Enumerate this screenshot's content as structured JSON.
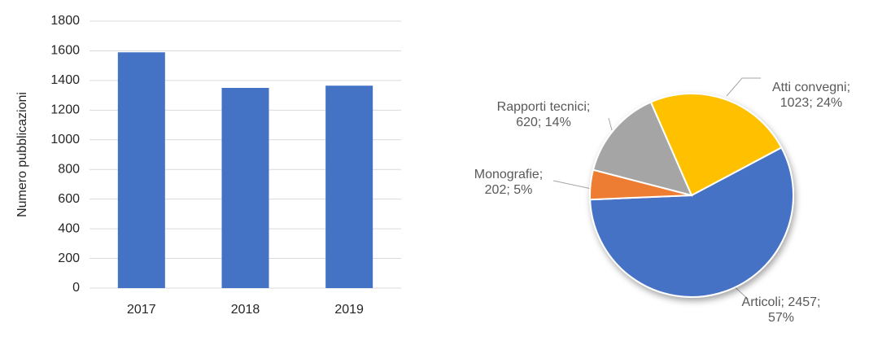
{
  "chart_data": [
    {
      "type": "bar",
      "y_label": "Numero  pubblicazioni",
      "categories": [
        "2017",
        "2018",
        "2019"
      ],
      "values": [
        1590,
        1350,
        1365
      ],
      "color": "#4472c4",
      "ylim": [
        0,
        1800
      ],
      "yticks": [
        0,
        200,
        400,
        600,
        800,
        1000,
        1200,
        1400,
        1600,
        1800
      ],
      "grid": true
    },
    {
      "type": "pie",
      "categories": [
        "Articoli",
        "Monografie",
        "Rapporti tecnici",
        "Atti convegni"
      ],
      "values": [
        2457,
        202,
        620,
        1023
      ],
      "value_labels": [
        "Articoli; 2457; 57%",
        "Monografie; 202; 5%",
        "Rapporti tecnici; 620; 14%",
        "Atti convegni; 1023; 24%"
      ],
      "colors": [
        "#4472c4",
        "#ed7d31",
        "#a5a5a5",
        "#ffc000"
      ]
    }
  ]
}
